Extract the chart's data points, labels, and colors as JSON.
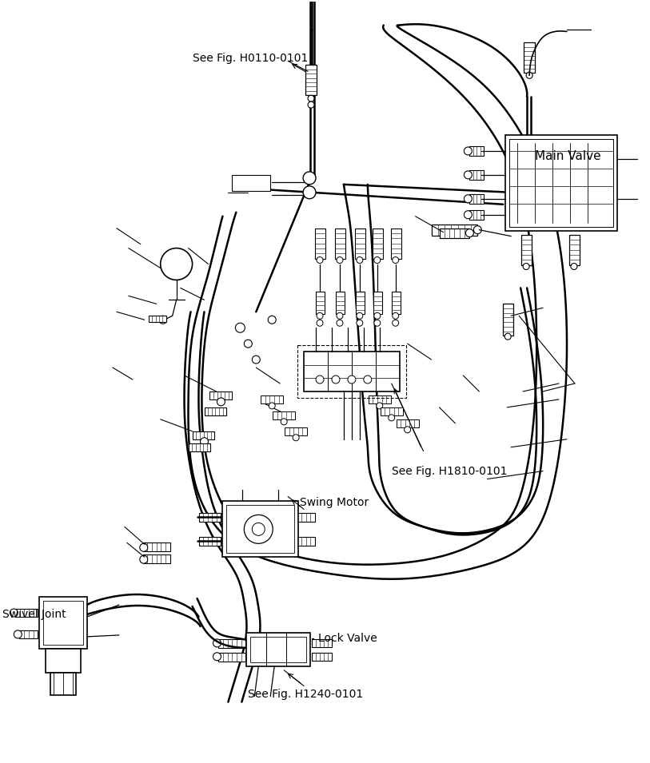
{
  "background_color": "#ffffff",
  "line_color": "#000000",
  "figsize": [
    8.13,
    9.55
  ],
  "dpi": 100,
  "labels": {
    "see_fig_h0110": "See Fig. H0110-0101",
    "main_valve": "Main Valve",
    "see_fig_h1810": "See Fig. H1810-0101",
    "swing_motor": "Swing Motor",
    "swivel_joint": "Swivel Joint",
    "lock_valve": "Lock Valve",
    "see_fig_h1240": "See Fig. H1240-0101"
  }
}
